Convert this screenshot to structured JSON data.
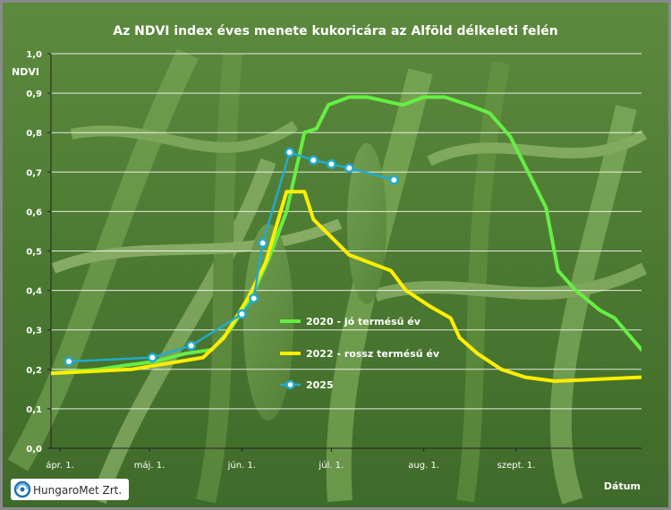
{
  "chart_data": {
    "type": "line",
    "title": "Az NDVI index éves menete kukoricára az Alföld délkeleti felén",
    "ylabel": "NDVI",
    "xlabel": "Dátum",
    "ylim": [
      0,
      1.0
    ],
    "y_ticks": [
      "0,0",
      "0,1",
      "0,2",
      "0,3",
      "0,4",
      "0,5",
      "0,6",
      "0,7",
      "0,8",
      "0,9",
      "1,0"
    ],
    "y_tick_values": [
      0,
      0.1,
      0.2,
      0.3,
      0.4,
      0.5,
      0.6,
      0.7,
      0.8,
      0.9,
      1.0
    ],
    "x_ticks": [
      "ápr. 1.",
      "máj. 1.",
      "jún. 1.",
      "júl. 1.",
      "aug. 1.",
      "szept. 1."
    ],
    "x_tick_values": [
      "04-01",
      "05-01",
      "06-01",
      "07-01",
      "08-01",
      "09-01"
    ],
    "xlim": [
      "03-29",
      "10-13"
    ],
    "grid": true,
    "legend_position": "center-right",
    "series": [
      {
        "name": "2020 - jó termésű év",
        "color": "#66ee44",
        "marker": "none",
        "points": [
          [
            "03-29",
            0.19
          ],
          [
            "04-14",
            0.2
          ],
          [
            "04-23",
            0.21
          ],
          [
            "05-03",
            0.22
          ],
          [
            "05-13",
            0.24
          ],
          [
            "05-22",
            0.25
          ],
          [
            "05-28",
            0.3
          ],
          [
            "06-04",
            0.38
          ],
          [
            "06-10",
            0.48
          ],
          [
            "06-16",
            0.6
          ],
          [
            "06-22",
            0.8
          ],
          [
            "06-26",
            0.81
          ],
          [
            "06-30",
            0.87
          ],
          [
            "07-07",
            0.89
          ],
          [
            "07-13",
            0.89
          ],
          [
            "07-19",
            0.88
          ],
          [
            "07-25",
            0.87
          ],
          [
            "08-01",
            0.89
          ],
          [
            "08-08",
            0.89
          ],
          [
            "08-16",
            0.87
          ],
          [
            "08-23",
            0.85
          ],
          [
            "08-30",
            0.79
          ],
          [
            "09-05",
            0.7
          ],
          [
            "09-11",
            0.61
          ],
          [
            "09-15",
            0.45
          ],
          [
            "09-21",
            0.4
          ],
          [
            "09-29",
            0.35
          ],
          [
            "10-04",
            0.33
          ],
          [
            "10-13",
            0.25
          ]
        ]
      },
      {
        "name": "2022 - rossz termésű év",
        "color": "#ffee00",
        "marker": "none",
        "points": [
          [
            "03-29",
            0.19
          ],
          [
            "04-25",
            0.2
          ],
          [
            "05-03",
            0.21
          ],
          [
            "05-11",
            0.22
          ],
          [
            "05-19",
            0.23
          ],
          [
            "05-26",
            0.28
          ],
          [
            "06-03",
            0.38
          ],
          [
            "06-09",
            0.47
          ],
          [
            "06-14",
            0.6
          ],
          [
            "06-16",
            0.65
          ],
          [
            "06-22",
            0.65
          ],
          [
            "06-25",
            0.58
          ],
          [
            "06-29",
            0.55
          ],
          [
            "07-03",
            0.52
          ],
          [
            "07-07",
            0.49
          ],
          [
            "07-21",
            0.45
          ],
          [
            "07-26",
            0.4
          ],
          [
            "08-03",
            0.36
          ],
          [
            "08-10",
            0.33
          ],
          [
            "08-13",
            0.28
          ],
          [
            "08-19",
            0.24
          ],
          [
            "08-27",
            0.2
          ],
          [
            "09-04",
            0.18
          ],
          [
            "09-14",
            0.17
          ],
          [
            "10-13",
            0.18
          ]
        ]
      },
      {
        "name": "2025",
        "color": "#22aacc",
        "marker": "circle",
        "points": [
          [
            "04-04",
            0.22
          ],
          [
            "05-02",
            0.23
          ],
          [
            "05-15",
            0.26
          ],
          [
            "06-01",
            0.34
          ],
          [
            "06-05",
            0.38
          ],
          [
            "06-08",
            0.52
          ],
          [
            "06-17",
            0.75
          ],
          [
            "06-25",
            0.73
          ],
          [
            "07-01",
            0.72
          ],
          [
            "07-07",
            0.71
          ],
          [
            "07-22",
            0.68
          ]
        ]
      }
    ]
  },
  "footer": {
    "logo_text": "HungaroMet Zrt."
  }
}
